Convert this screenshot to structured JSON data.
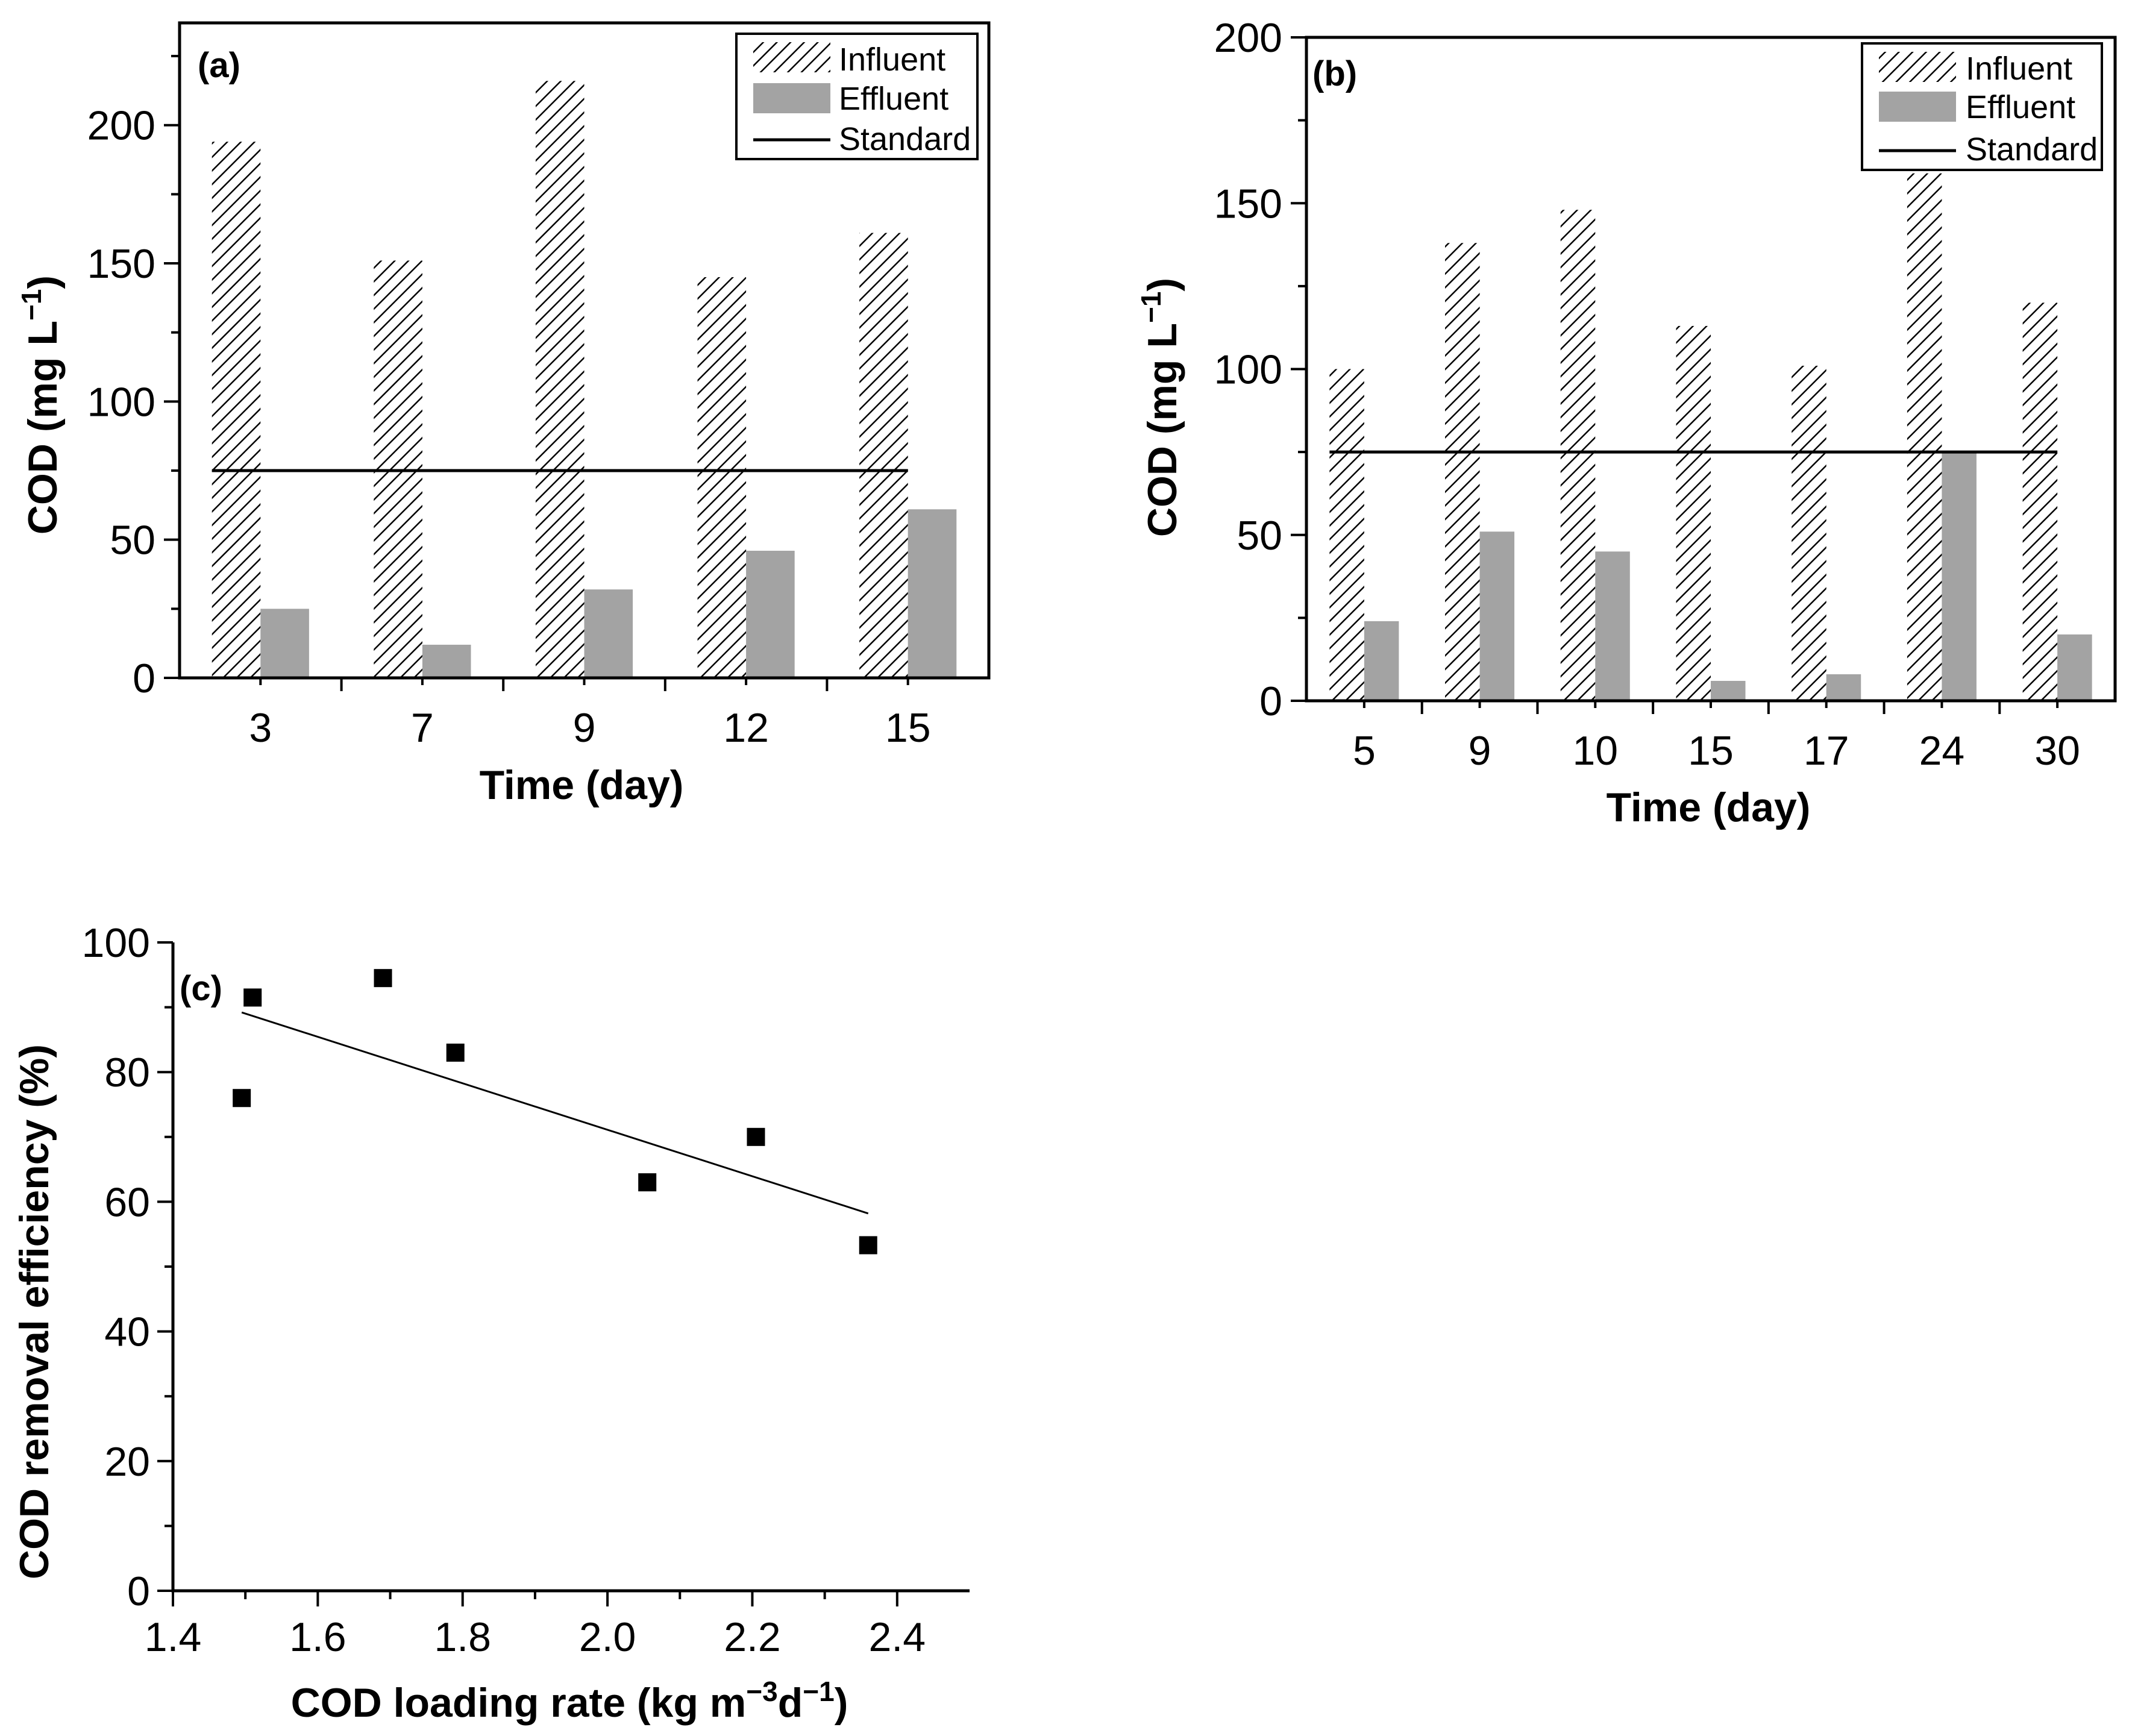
{
  "colors": {
    "axis": "#000000",
    "effluent": "#a3a3a3",
    "hatch": "#000000",
    "standard": "#000000",
    "marker": "#000000"
  },
  "chart_data": [
    {
      "id": "a",
      "type": "bar",
      "panel_label": "(a)",
      "categories": [
        "3",
        "7",
        "9",
        "12",
        "15"
      ],
      "series": [
        {
          "name": "Influent",
          "style": "hatched",
          "values": [
            194,
            151,
            216,
            145,
            161
          ]
        },
        {
          "name": "Effluent",
          "style": "gray",
          "values": [
            25,
            12,
            32,
            46,
            61
          ]
        }
      ],
      "standard": {
        "name": "Standard",
        "value": 75
      },
      "legend": [
        "Influent",
        "Effluent",
        "Standard"
      ],
      "legend_position": "top-right",
      "xlabel": "Time (day)",
      "ylabel": {
        "main": "COD (mg L",
        "sup": "−1",
        "close": ")"
      },
      "ylim": [
        0,
        237
      ],
      "yticks": [
        0,
        50,
        100,
        150,
        200
      ]
    },
    {
      "id": "b",
      "type": "bar",
      "panel_label": "(b)",
      "categories": [
        "5",
        "9",
        "10",
        "15",
        "17",
        "24",
        "30"
      ],
      "series": [
        {
          "name": "Influent",
          "style": "hatched",
          "values": [
            100,
            138,
            148,
            113,
            101,
            159,
            120
          ]
        },
        {
          "name": "Effluent",
          "style": "gray",
          "values": [
            24,
            51,
            45,
            6,
            8,
            75,
            20
          ]
        }
      ],
      "standard": {
        "name": "Standard",
        "value": 75
      },
      "legend": [
        "Influent",
        "Effluent",
        "Standard"
      ],
      "legend_position": "top-right",
      "xlabel": "Time (day)",
      "ylabel": {
        "main": "COD (mg L",
        "sup": "−1",
        "close": ")"
      },
      "ylim": [
        0,
        200
      ],
      "yticks": [
        0,
        50,
        100,
        150,
        200
      ]
    },
    {
      "id": "c",
      "type": "scatter",
      "panel_label": "(c)",
      "points": [
        {
          "x": 1.495,
          "y": 76
        },
        {
          "x": 1.51,
          "y": 91.5
        },
        {
          "x": 1.69,
          "y": 94.5
        },
        {
          "x": 1.79,
          "y": 83
        },
        {
          "x": 2.055,
          "y": 63
        },
        {
          "x": 2.205,
          "y": 70
        },
        {
          "x": 2.36,
          "y": 53.3
        }
      ],
      "fit_line": {
        "x": [
          1.495,
          2.36
        ],
        "y": [
          89.2,
          58.2
        ]
      },
      "xlabel": {
        "main": "COD loading rate (kg m",
        "sup1": "−3",
        "mid": "d",
        "sup2": "−1",
        "close": ")"
      },
      "ylabel": "COD removal efficiency (%)",
      "xlim": [
        1.4,
        2.5
      ],
      "ylim": [
        0,
        100
      ],
      "xticks": [
        "1.4",
        "1.6",
        "1.8",
        "2.0",
        "2.2",
        "2.4"
      ],
      "yticks": [
        0,
        20,
        40,
        60,
        80,
        100
      ]
    }
  ]
}
